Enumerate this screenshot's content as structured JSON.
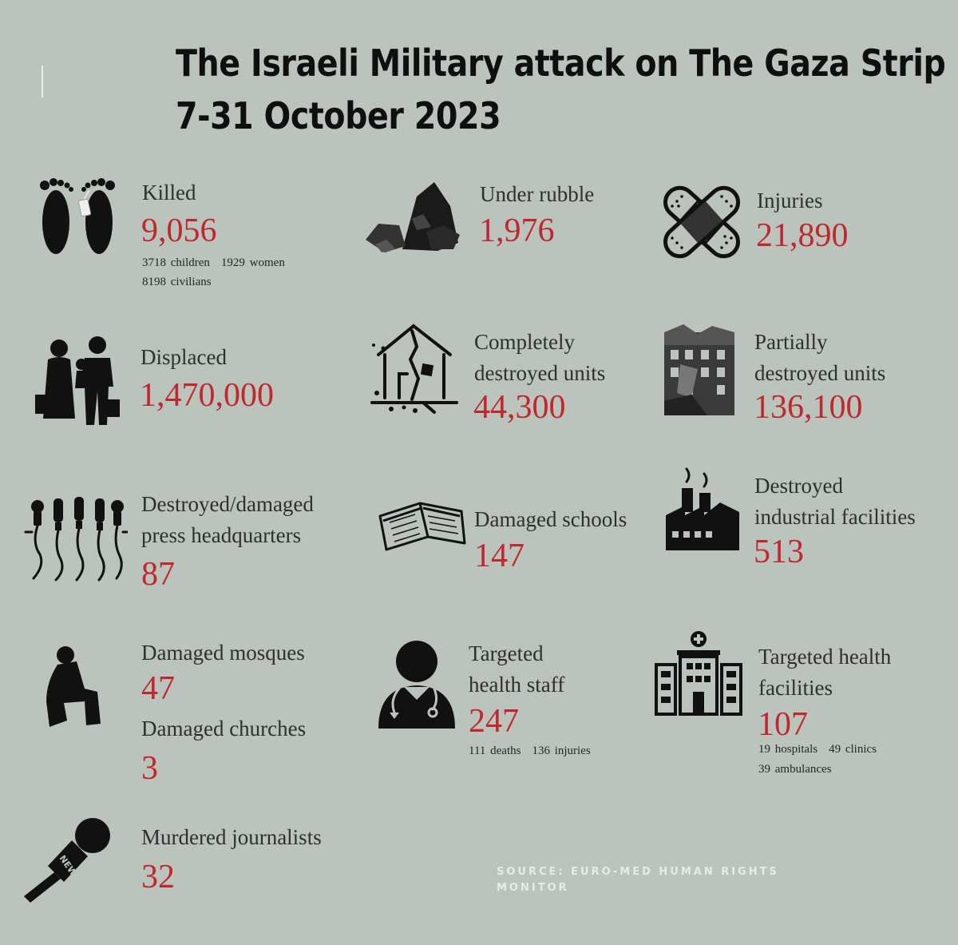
{
  "title": {
    "line1": "The Israeli Military attack on The Gaza Strip",
    "line2": "7-31 October 2023"
  },
  "stats": {
    "killed": {
      "label": "Killed",
      "value": "9,056",
      "children": "3718 children",
      "women": "1929 women",
      "civilians": "8198 civilians"
    },
    "under_rubble": {
      "label": "Under rubble",
      "value": "1,976"
    },
    "injuries": {
      "label": "Injuries",
      "value": "21,890"
    },
    "displaced": {
      "label": "Displaced",
      "value": "1,470,000"
    },
    "completely_destroyed": {
      "label_line1": "Completely",
      "label_line2": "destroyed units",
      "value": "44,300"
    },
    "partially_destroyed": {
      "label_line1": "Partially",
      "label_line2": "destroyed units",
      "value": "136,100"
    },
    "press_hq": {
      "label_line1": "Destroyed/damaged",
      "label_line2": "press headquarters",
      "value": "87"
    },
    "schools": {
      "label": "Damaged schools",
      "value": "147"
    },
    "industrial": {
      "label_line1": "Destroyed",
      "label_line2": "industrial facilities",
      "value": "513"
    },
    "mosques": {
      "label": "Damaged mosques",
      "value": "47"
    },
    "churches": {
      "label": "Damaged churches",
      "value": "3"
    },
    "health_staff": {
      "label_line1": "Targeted",
      "label_line2": "health staff",
      "value": "247",
      "deaths": "111 deaths",
      "injuries": "136 injuries"
    },
    "health_facilities": {
      "label_line1": "Targeted health",
      "label_line2": "facilities",
      "value": "107",
      "hospitals": "19 hospitals",
      "clinics": "49 clinics",
      "ambulances": "39 ambulances"
    },
    "journalists": {
      "label": "Murdered journalists",
      "value": "32"
    }
  },
  "icons": {
    "killed": "feet-toe-tag-icon",
    "rubble": "rubble-icon",
    "injuries": "crossed-bandages-icon",
    "displaced": "family-with-luggage-icon",
    "destroyed_house": "destroyed-house-icon",
    "damaged_building": "damaged-building-icon",
    "press": "microphones-icon",
    "schools": "open-book-icon",
    "industrial": "factory-icon",
    "mosques": "praying-person-icon",
    "health_staff": "doctor-icon",
    "health_facilities": "hospital-icon",
    "journalists": "news-microphone-icon"
  },
  "source": {
    "line1": "SOURCE: EURO-MED HUMAN RIGHTS",
    "line2": "MONITOR"
  },
  "colors": {
    "background": "#bac4bd",
    "value": "#c0282d",
    "title": "#0f0f0f",
    "source": "#e6ebe7"
  }
}
